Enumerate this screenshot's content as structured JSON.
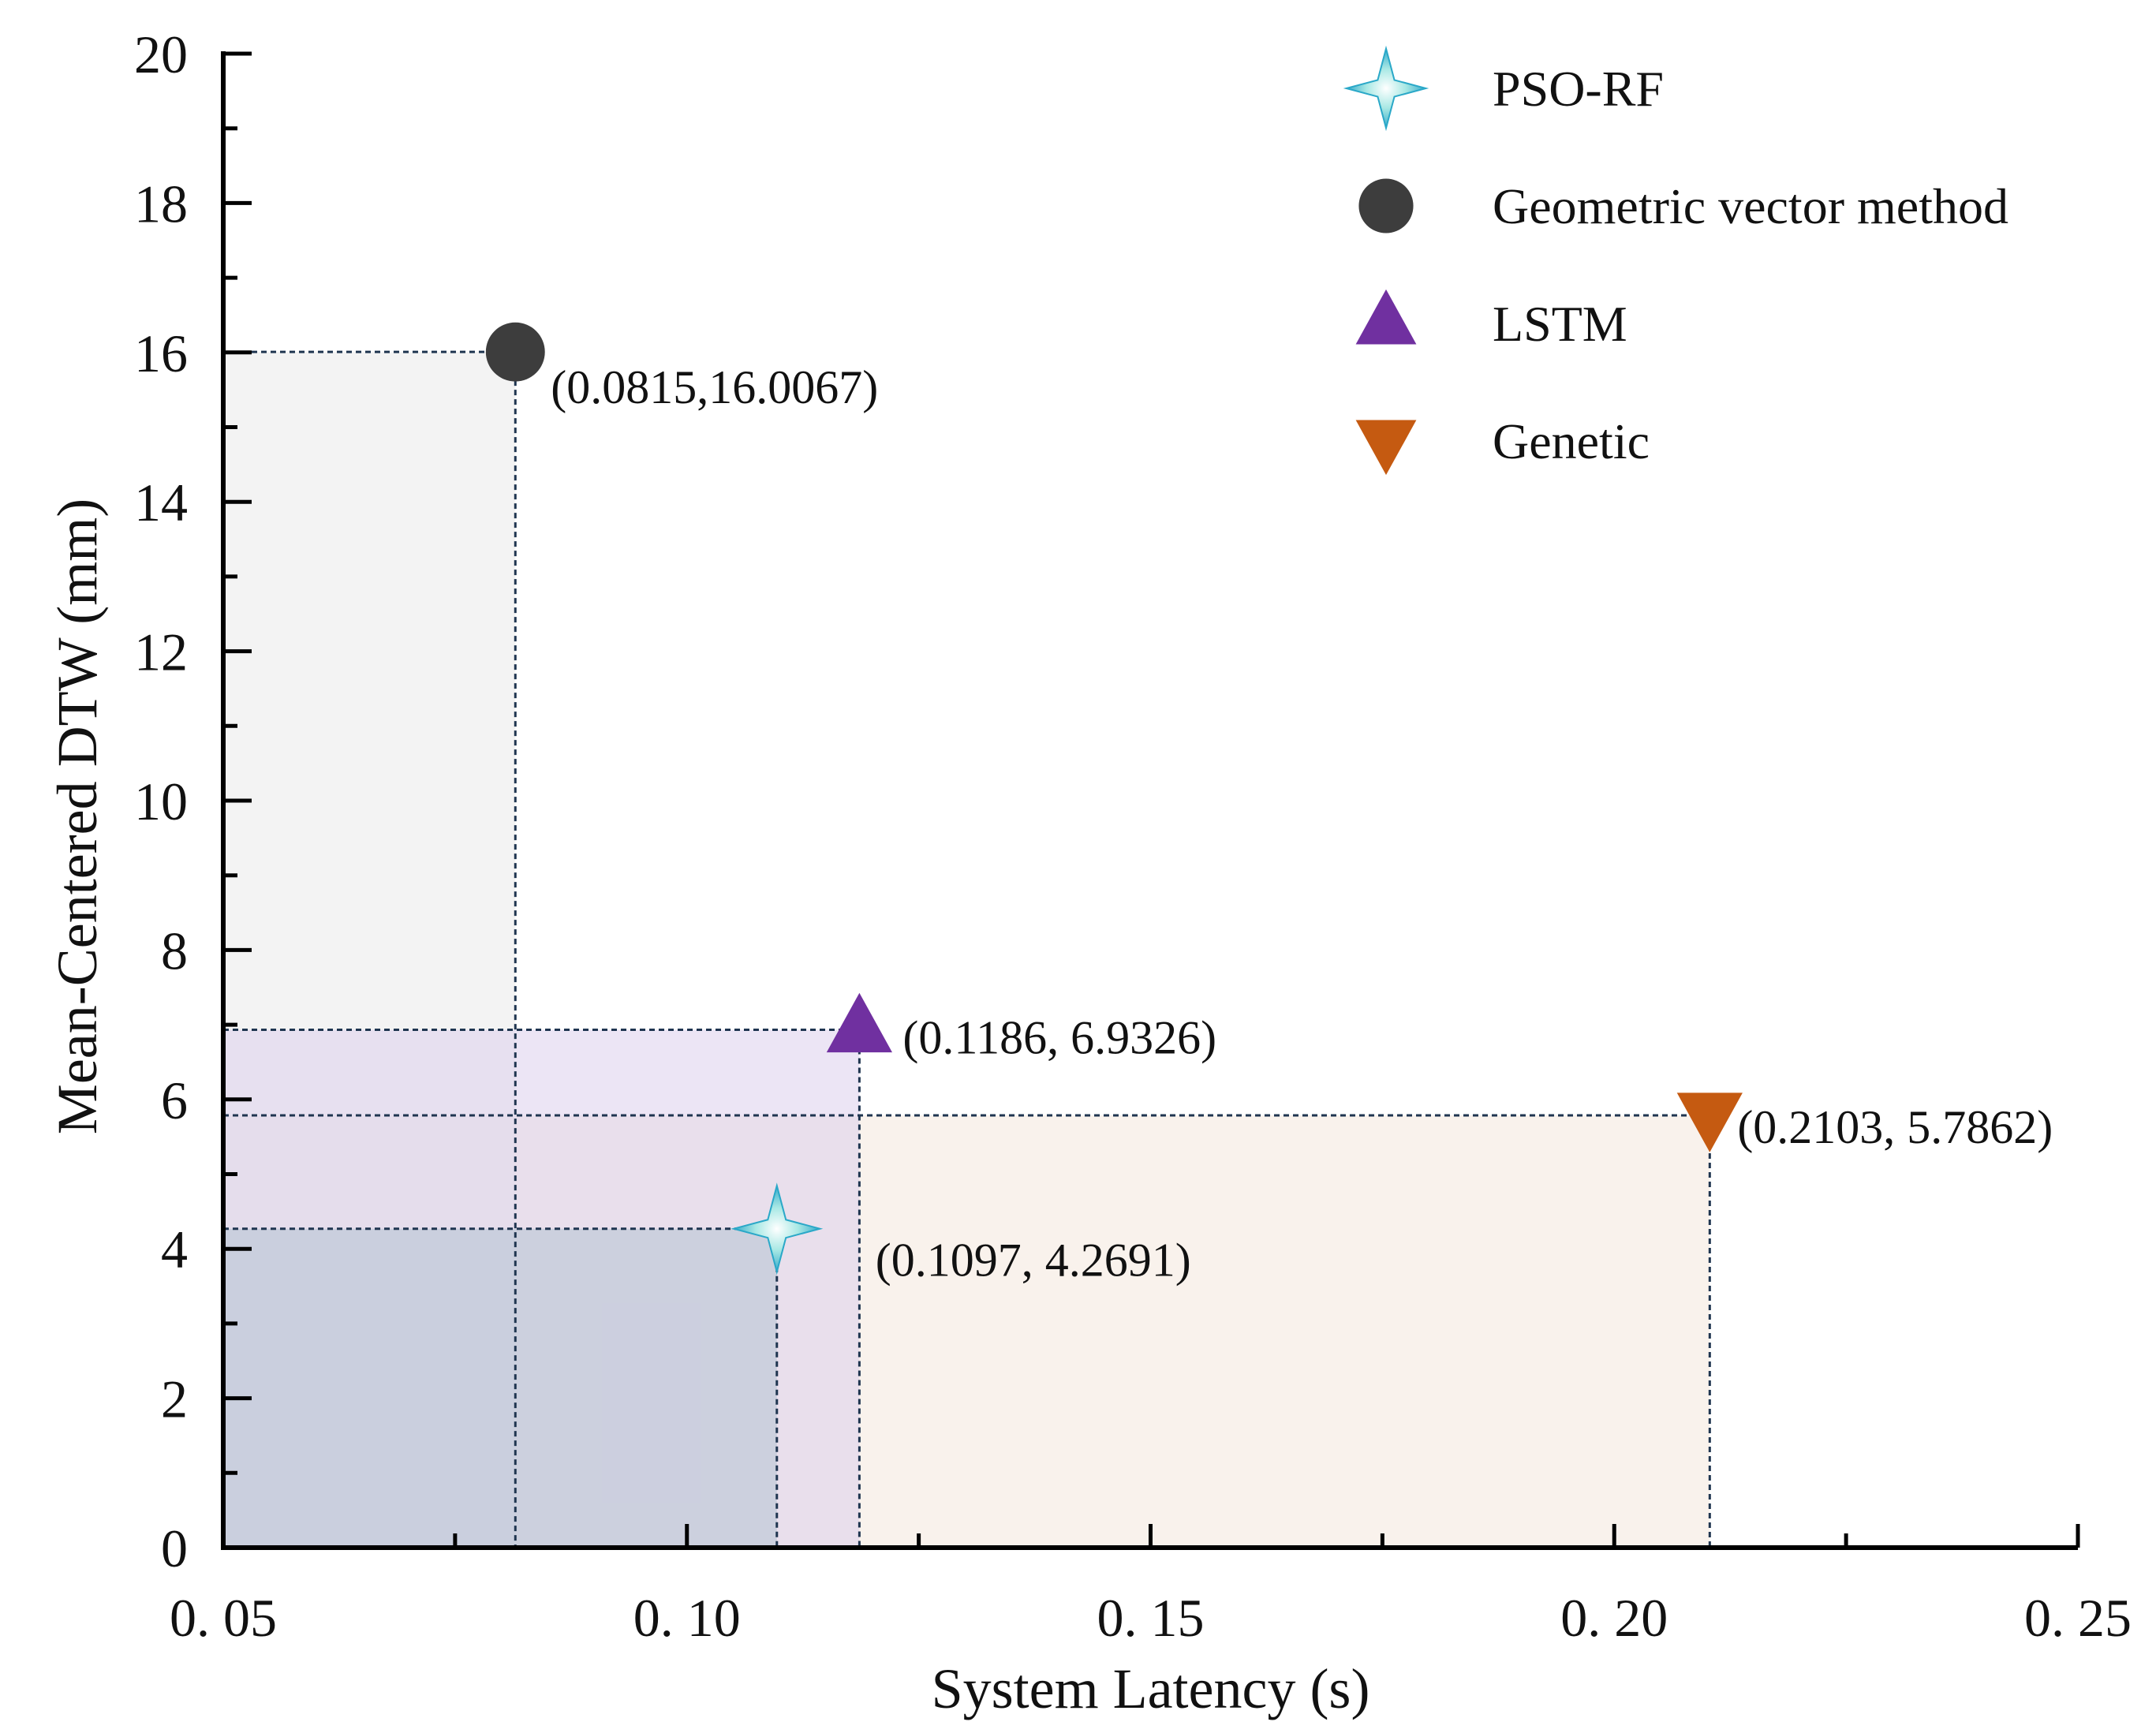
{
  "chart_data": {
    "type": "scatter",
    "title": "",
    "xlabel": "System Latency (s)",
    "ylabel": "Mean-Centered DTW (mm)",
    "xlim": [
      0.05,
      0.25
    ],
    "ylim": [
      0,
      20
    ],
    "xticks": [
      {
        "value": 0.05,
        "label": "0. 05"
      },
      {
        "value": 0.1,
        "label": "0. 10"
      },
      {
        "value": 0.15,
        "label": "0. 15"
      },
      {
        "value": 0.2,
        "label": "0. 20"
      },
      {
        "value": 0.25,
        "label": "0. 25"
      }
    ],
    "yticks": [
      {
        "value": 0,
        "label": "0"
      },
      {
        "value": 2,
        "label": "2"
      },
      {
        "value": 4,
        "label": "4"
      },
      {
        "value": 6,
        "label": "6"
      },
      {
        "value": 8,
        "label": "8"
      },
      {
        "value": 10,
        "label": "10"
      },
      {
        "value": 12,
        "label": "12"
      },
      {
        "value": 14,
        "label": "14"
      },
      {
        "value": 16,
        "label": "16"
      },
      {
        "value": 18,
        "label": "18"
      },
      {
        "value": 20,
        "label": "20"
      }
    ],
    "legend_position": "top-right",
    "grid": false,
    "series": [
      {
        "name": "PSO-RF",
        "marker": "star",
        "color": "#2aa8c8",
        "x": 0.1097,
        "y": 4.2691,
        "label": "(0.1097, 4.2691)",
        "region_fill": "#b4c2d4"
      },
      {
        "name": "Geometric vector method",
        "marker": "circle",
        "color": "#3d3d3d",
        "x": 0.0815,
        "y": 16.0067,
        "label": "(0.0815,16.0067)",
        "region_fill": "#e9e9e9"
      },
      {
        "name": "LSTM",
        "marker": "triangle-up",
        "color": "#7030a0",
        "x": 0.1186,
        "y": 6.9326,
        "label": "(0.1186, 6.9326)",
        "region_fill": "#dccfec"
      },
      {
        "name": "Genetic",
        "marker": "triangle-down",
        "color": "#c55a11",
        "x": 0.2103,
        "y": 5.7862,
        "label": "(0.2103, 5.7862)",
        "region_fill": "#f4e8dc"
      }
    ]
  }
}
